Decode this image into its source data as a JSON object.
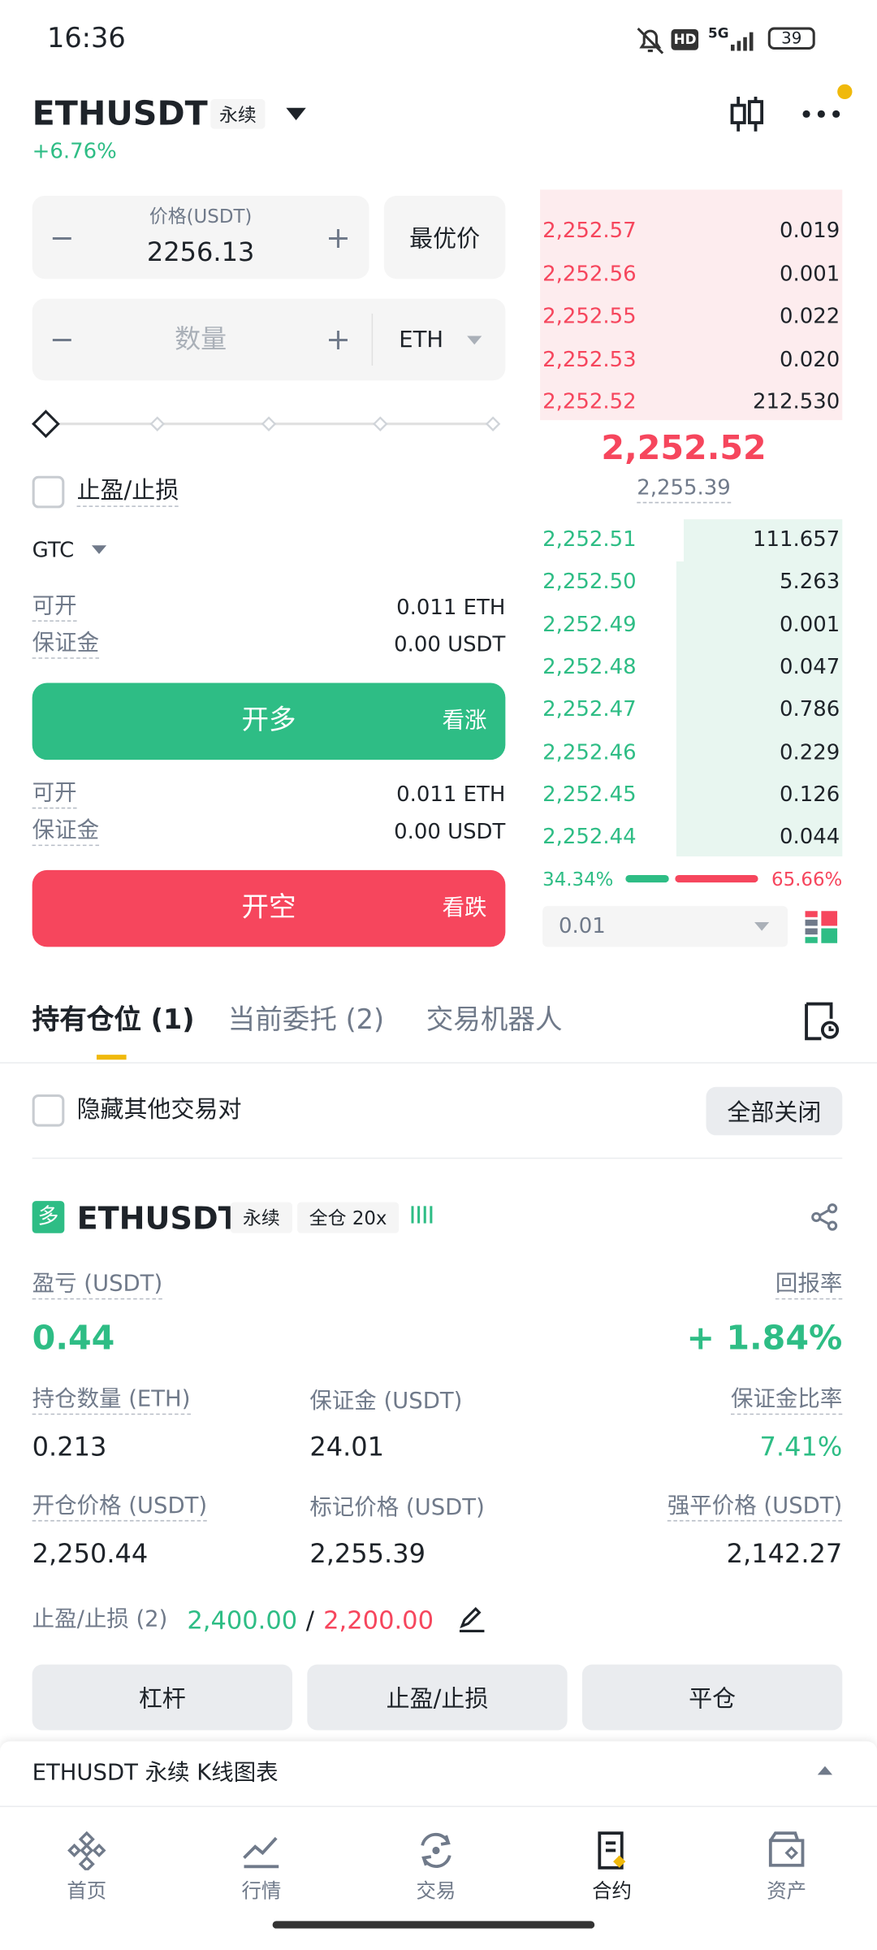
{
  "status_bar": {
    "time": "16:36",
    "hd": "HD",
    "network": "5G",
    "battery": "39"
  },
  "header": {
    "symbol": "ETHUSDT",
    "contract": "永续",
    "change": "+6.76%"
  },
  "order_form": {
    "price_label": "价格(USDT)",
    "price": "2256.13",
    "best_price": "最优价",
    "qty_placeholder": "数量",
    "qty_unit": "ETH",
    "tpsl": "止盈/止损",
    "tif": "GTC",
    "long": {
      "available_label": "可开",
      "available": "0.011 ETH",
      "margin_label": "保证金",
      "margin": "0.00 USDT",
      "button": "开多",
      "hint": "看涨"
    },
    "short": {
      "available_label": "可开",
      "available": "0.011 ETH",
      "margin_label": "保证金",
      "margin": "0.00 USDT",
      "button": "开空",
      "hint": "看跌"
    }
  },
  "order_book": {
    "asks": [
      {
        "price": "2,252.57",
        "qty": "0.019"
      },
      {
        "price": "2,252.56",
        "qty": "0.001"
      },
      {
        "price": "2,252.55",
        "qty": "0.022"
      },
      {
        "price": "2,252.53",
        "qty": "0.020"
      },
      {
        "price": "2,252.52",
        "qty": "212.530"
      }
    ],
    "last_price": "2,252.52",
    "mark_price": "2,255.39",
    "bids": [
      {
        "price": "2,252.51",
        "qty": "111.657"
      },
      {
        "price": "2,252.50",
        "qty": "5.263"
      },
      {
        "price": "2,252.49",
        "qty": "0.001"
      },
      {
        "price": "2,252.48",
        "qty": "0.047"
      },
      {
        "price": "2,252.47",
        "qty": "0.786"
      },
      {
        "price": "2,252.46",
        "qty": "0.229"
      },
      {
        "price": "2,252.45",
        "qty": "0.126"
      },
      {
        "price": "2,252.44",
        "qty": "0.044"
      }
    ],
    "buy_ratio": "34.34%",
    "sell_ratio": "65.66%",
    "precision": "0.01"
  },
  "tabs": [
    "持有仓位 (1)",
    "当前委托 (2)",
    "交易机器人"
  ],
  "filter": {
    "hide_pairs": "隐藏其他交易对",
    "close_all": "全部关闭"
  },
  "position": {
    "side": "多",
    "symbol": "ETHUSDT",
    "contract": "永续",
    "margin_mode": "全仓 20x",
    "pnl_label": "盈亏 (USDT)",
    "pnl": "0.44",
    "roe_label": "回报率",
    "roe": "+ 1.84%",
    "fields": [
      {
        "label": "持仓数量 (ETH)",
        "value": "0.213"
      },
      {
        "label": "保证金 (USDT)",
        "value": "24.01"
      },
      {
        "label": "保证金比率",
        "value": "7.41%"
      },
      {
        "label": "开仓价格 (USDT)",
        "value": "2,250.44"
      },
      {
        "label": "标记价格 (USDT)",
        "value": "2,255.39"
      },
      {
        "label": "强平价格 (USDT)",
        "value": "2,142.27"
      }
    ],
    "tpsl_label": "止盈/止损 (2)",
    "tp": "2,400.00",
    "separator": "/",
    "sl": "2,200.00",
    "actions": [
      "杠杆",
      "止盈/止损",
      "平仓"
    ]
  },
  "kline_bar": "ETHUSDT 永续 K线图表",
  "nav": [
    "首页",
    "行情",
    "交易",
    "合约",
    "资产"
  ]
}
